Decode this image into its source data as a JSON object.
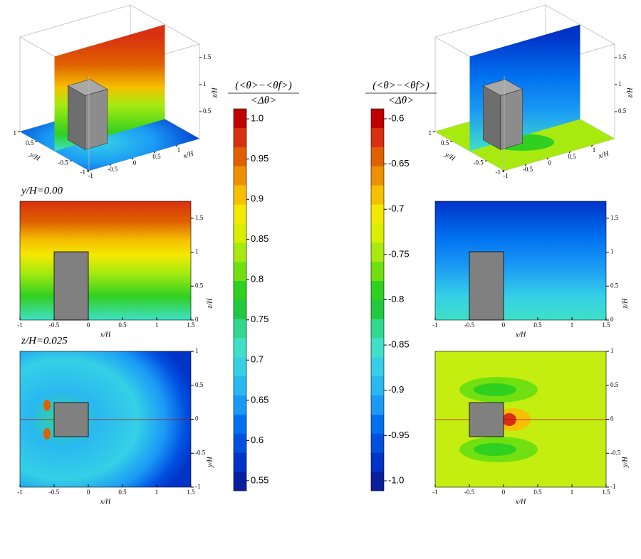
{
  "chart_data": [
    {
      "type": "colorbar",
      "title_numerator": "(<θ>−<θf>)",
      "title_denominator": "<Δθ>",
      "ylim": [
        0.5375,
        1.0125
      ],
      "yticks": [
        {
          "value": 1,
          "label": "1.0"
        },
        0.95,
        0.9,
        0.85,
        0.8,
        0.75,
        0.7,
        0.65,
        0.6,
        0.55
      ],
      "colors": [
        "#0a1f9e",
        "#0033c8",
        "#0050e0",
        "#0070f0",
        "#1a9af5",
        "#2ab8f0",
        "#35d0e6",
        "#3fe0c8",
        "#30d890",
        "#22c840",
        "#30d020",
        "#70e010",
        "#a8ea10",
        "#d8f000",
        "#f5e800",
        "#f5c000",
        "#ed9000",
        "#e06000",
        "#d83010",
        "#c00000"
      ]
    },
    {
      "type": "colorbar",
      "title_numerator": "(<θ>−<θf>)",
      "title_denominator": "<Δθ>",
      "ylim": [
        -1.011,
        -0.589
      ],
      "yticks": [
        -0.6,
        -0.65,
        -0.7,
        -0.75,
        -0.8,
        -0.85,
        -0.9,
        -0.95,
        {
          "value": -1,
          "label": "-1.0"
        }
      ],
      "colors": [
        "#0a1f9e",
        "#0033c8",
        "#0050e0",
        "#0070f0",
        "#1a9af5",
        "#2ab8f0",
        "#35d0e6",
        "#3fe0c8",
        "#30d890",
        "#22c840",
        "#30d020",
        "#70e010",
        "#a8ea10",
        "#d8f000",
        "#f5e800",
        "#f5c000",
        "#ed9000",
        "#e06000",
        "#d83010",
        "#c00000"
      ]
    },
    {
      "type": "contour",
      "annotation": "y/H=0.00",
      "annotation_color": "#c8102e",
      "xlabel": "x/H",
      "ylabel": "z/H",
      "xlim": [
        -1,
        1.5
      ],
      "ylim": [
        0,
        1.75
      ],
      "xticks": [
        -1,
        -0.5,
        0,
        0.5,
        1,
        1.5
      ],
      "yticks": [
        0,
        0.5,
        1,
        1.5
      ]
    },
    {
      "type": "contour",
      "annotation": "z/H=0.025",
      "annotation_color": "#2eaa57",
      "xlabel": "x/H",
      "ylabel": "y/H",
      "xlim": [
        -1,
        1.5
      ],
      "ylim": [
        -1,
        1
      ],
      "xticks": [
        -1,
        -0.5,
        0,
        0.5,
        1,
        1.5
      ],
      "yticks": [
        -1,
        -0.5,
        0,
        0.5,
        1
      ]
    },
    {
      "type": "contour",
      "xlabel": "x/H",
      "ylabel": "z/H",
      "xlim": [
        -1,
        1.5
      ],
      "ylim": [
        0,
        1.75
      ],
      "xticks": [
        -1,
        -0.5,
        0,
        0.5,
        1,
        1.5
      ],
      "yticks": [
        0,
        0.5,
        1,
        1.5
      ]
    },
    {
      "type": "contour",
      "xlabel": "x/H",
      "ylabel": "y/H",
      "xlim": [
        -1,
        1.5
      ],
      "ylim": [
        -1,
        1
      ],
      "xticks": [
        -1,
        -0.5,
        0,
        0.5,
        1,
        1.5
      ],
      "yticks": [
        -1,
        -0.5,
        0,
        0.5,
        1
      ]
    },
    {
      "type": "view3d",
      "xlabel": "x/H",
      "ylabel": "y/H",
      "zlabel": "z/H",
      "xticks": [
        -1,
        -0.5,
        0,
        0.5,
        1
      ],
      "yticks": [
        -1,
        -0.5,
        0.5,
        1
      ],
      "zticks": [
        0.5,
        1,
        1.5
      ]
    },
    {
      "type": "view3d",
      "xlabel": "x/H",
      "ylabel": "y/H",
      "zlabel": "z/H",
      "xticks": [
        -1,
        -0.5,
        0,
        0.5,
        1
      ],
      "yticks": [
        -1,
        -0.5,
        0.5,
        1
      ],
      "zticks": [
        0.5,
        1,
        1.5
      ]
    }
  ]
}
